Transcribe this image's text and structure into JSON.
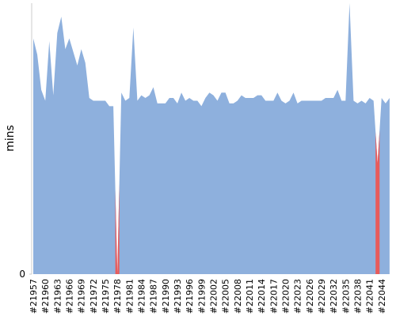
{
  "chart_data": {
    "type": "area",
    "y_label": "mins",
    "categories": [
      "#21957",
      null,
      null,
      "#21960",
      null,
      null,
      "#21963",
      null,
      null,
      "#21966",
      null,
      null,
      "#21969",
      null,
      null,
      "#21972",
      null,
      null,
      "#21975",
      null,
      null,
      "#21978",
      null,
      null,
      "#21981",
      null,
      null,
      "#21984",
      null,
      null,
      "#21987",
      null,
      null,
      "#21990",
      null,
      null,
      "#21993",
      null,
      null,
      "#21996",
      null,
      null,
      "#21999",
      null,
      null,
      "#22002",
      null,
      null,
      "#22005",
      null,
      null,
      "#22008",
      null,
      null,
      "#22011",
      null,
      null,
      "#22014",
      null,
      null,
      "#22017",
      null,
      null,
      "#22020",
      null,
      null,
      "#22023",
      null,
      null,
      "#22026",
      null,
      null,
      "#22029",
      null,
      null,
      "#22032",
      null,
      null,
      "#22035",
      null,
      null,
      "#22038",
      null,
      null,
      "#22041",
      null,
      null,
      "#22044",
      null,
      null
    ],
    "values": [
      87,
      81,
      68,
      64,
      86,
      66,
      89,
      95,
      83,
      87,
      82,
      77,
      83,
      78,
      65,
      64,
      64,
      64,
      64,
      62,
      62,
      0,
      67,
      64,
      65,
      91,
      64,
      66,
      65,
      66,
      69,
      63,
      63,
      63,
      65,
      65,
      63,
      67,
      64,
      65,
      64,
      64,
      62,
      65,
      67,
      66,
      64,
      67,
      67,
      63,
      63,
      64,
      66,
      65,
      65,
      65,
      66,
      66,
      64,
      64,
      64,
      67,
      64,
      63,
      64,
      67,
      63,
      64,
      64,
      64,
      64,
      64,
      64,
      65,
      65,
      65,
      68,
      64,
      64,
      100,
      64,
      63,
      64,
      63,
      65,
      64,
      41,
      65,
      63,
      65
    ],
    "color": "#8eb0dd",
    "failed_color": "#e85b5b",
    "failed": [
      false,
      false,
      false,
      false,
      false,
      false,
      false,
      false,
      false,
      false,
      false,
      false,
      false,
      false,
      false,
      false,
      false,
      false,
      false,
      false,
      false,
      true,
      false,
      false,
      false,
      false,
      false,
      false,
      false,
      false,
      false,
      false,
      false,
      false,
      false,
      false,
      false,
      false,
      false,
      false,
      false,
      false,
      false,
      false,
      false,
      false,
      false,
      false,
      false,
      false,
      false,
      false,
      false,
      false,
      false,
      false,
      false,
      false,
      false,
      false,
      false,
      false,
      false,
      false,
      false,
      false,
      false,
      false,
      false,
      false,
      false,
      false,
      false,
      false,
      false,
      false,
      false,
      false,
      false,
      false,
      false,
      false,
      false,
      false,
      false,
      false,
      true,
      false,
      false,
      false
    ],
    "ylim": [
      0,
      100
    ],
    "yticks": [
      0
    ]
  }
}
